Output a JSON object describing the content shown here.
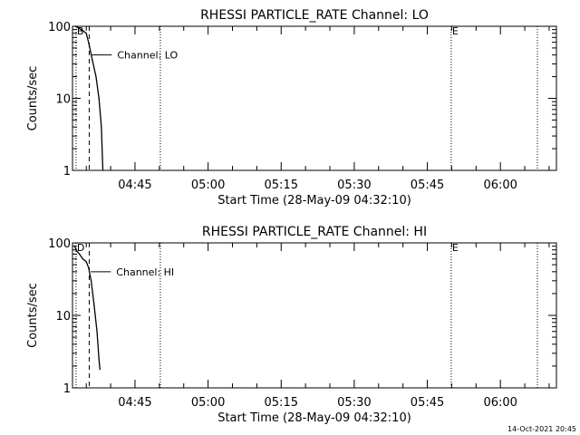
{
  "footer": {
    "timestamp": "14-Oct-2021 20:45"
  },
  "chart_data": [
    {
      "type": "line",
      "title": "RHESSI PARTICLE_RATE Channel: LO",
      "xlabel": "Start Time (28-May-09 04:32:10)",
      "ylabel": "Counts/sec",
      "y_scale": "log",
      "ylim": [
        1,
        100
      ],
      "y_ticks": [
        1,
        10,
        100
      ],
      "y_tick_labels": [
        "1",
        "10",
        "100"
      ],
      "x_tick_labels": [
        "04:45",
        "05:00",
        "05:15",
        "05:30",
        "05:45",
        "06:00"
      ],
      "x_tick_minutes": [
        45,
        60,
        75,
        90,
        105,
        120
      ],
      "x_range_minutes": [
        32.17,
        131.5
      ],
      "series_label": "Channel: LO",
      "markers": [
        {
          "label": "B",
          "minute": 32.9,
          "style": "dotted"
        },
        {
          "label": "",
          "minute": 35.6,
          "style": "dashed"
        },
        {
          "label": "",
          "minute": 50.2,
          "style": "dotted"
        },
        {
          "label": "E",
          "minute": 109.9,
          "style": "dotted"
        },
        {
          "label": "",
          "minute": 127.6,
          "style": "dotted"
        }
      ],
      "series": [
        {
          "points": [
            [
              32.8,
              100
            ],
            [
              33.4,
              95
            ],
            [
              34.2,
              88
            ],
            [
              35.0,
              80
            ],
            [
              35.6,
              55
            ],
            [
              36.2,
              35
            ],
            [
              37.0,
              20
            ],
            [
              37.6,
              10
            ],
            [
              38.1,
              4
            ],
            [
              38.4,
              1
            ]
          ]
        }
      ]
    },
    {
      "type": "line",
      "title": "RHESSI PARTICLE_RATE Channel: HI",
      "xlabel": "Start Time (28-May-09 04:32:10)",
      "ylabel": "Counts/sec",
      "y_scale": "log",
      "ylim": [
        1,
        100
      ],
      "y_ticks": [
        1,
        10,
        100
      ],
      "y_tick_labels": [
        "1",
        "10",
        "100"
      ],
      "x_tick_labels": [
        "04:45",
        "05:00",
        "05:15",
        "05:30",
        "05:45",
        "06:00"
      ],
      "x_tick_minutes": [
        45,
        60,
        75,
        90,
        105,
        120
      ],
      "x_range_minutes": [
        32.17,
        131.5
      ],
      "series_label": "Channel: HI",
      "markers": [
        {
          "label": "D",
          "minute": 32.9,
          "style": "dotted"
        },
        {
          "label": "",
          "minute": 35.6,
          "style": "dashed"
        },
        {
          "label": "",
          "minute": 50.2,
          "style": "dotted"
        },
        {
          "label": "E",
          "minute": 109.9,
          "style": "dotted"
        },
        {
          "label": "",
          "minute": 127.6,
          "style": "dotted"
        }
      ],
      "series": [
        {
          "points": [
            [
              32.6,
              90
            ],
            [
              33.0,
              78
            ],
            [
              33.6,
              70
            ],
            [
              34.3,
              60
            ],
            [
              35.0,
              55
            ],
            [
              35.5,
              45
            ],
            [
              36.0,
              30
            ],
            [
              36.6,
              14
            ],
            [
              37.2,
              6
            ],
            [
              37.6,
              2.5
            ],
            [
              37.8,
              1.8
            ]
          ]
        }
      ]
    }
  ]
}
